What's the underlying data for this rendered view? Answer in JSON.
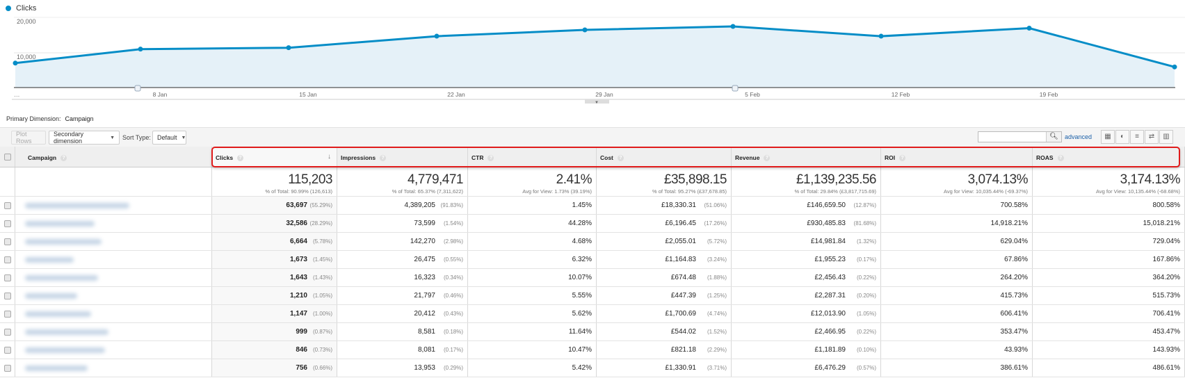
{
  "chart_data": {
    "type": "area",
    "series": [
      {
        "name": "Clicks",
        "values": [
          7000,
          11000,
          11400,
          14700,
          16500,
          17500,
          14700,
          17000,
          5900
        ]
      }
    ],
    "x_tick_labels": [
      "…",
      "8 Jan",
      "15 Jan",
      "22 Jan",
      "29 Jan",
      "5 Feb",
      "12 Feb",
      "19 Feb"
    ],
    "y_tick_labels": [
      "20,000",
      "10,000"
    ],
    "ylim": [
      0,
      20000
    ],
    "grid": true,
    "legend": "top-left",
    "color": "#058dc7",
    "fill_color": "#e5f1f8"
  },
  "primary_dimension": {
    "label": "Primary Dimension:",
    "value": "Campaign"
  },
  "toolbar": {
    "plot_rows": "Plot Rows",
    "secondary_dimension": "Secondary dimension",
    "sort_type_label": "Sort Type:",
    "sort_type_value": "Default",
    "search_value": "",
    "advanced": "advanced",
    "view_icons": [
      "data-table-icon",
      "pie-icon",
      "performance-icon",
      "comparison-icon",
      "pivot-icon"
    ]
  },
  "table": {
    "columns": [
      "Campaign",
      "Clicks",
      "Impressions",
      "CTR",
      "Cost",
      "Revenue",
      "ROI",
      "ROAS"
    ],
    "totals": [
      {
        "value": "115,203",
        "sub": "% of Total: 90.99% (126,613)"
      },
      {
        "value": "4,779,471",
        "sub": "% of Total: 65.37% (7,311,622)"
      },
      {
        "value": "2.41%",
        "sub": "Avg for View: 1.73% (39.19%)"
      },
      {
        "value": "£35,898.15",
        "sub": "% of Total: 95.27% (£37,678.85)"
      },
      {
        "value": "£1,139,235.56",
        "sub": "% of Total: 29.84% (£3,817,715.69)"
      },
      {
        "value": "3,074.13%",
        "sub": "Avg for View: 10,035.44% (-69.37%)"
      },
      {
        "value": "3,174.13%",
        "sub": "Avg for View: 10,135.44% (-68.68%)"
      }
    ],
    "rows": [
      {
        "clicks": "63,697",
        "clicks_pct": "(55.29%)",
        "impressions": "4,389,205",
        "impressions_pct": "(91.83%)",
        "ctr": "1.45%",
        "cost": "£18,330.31",
        "cost_pct": "(51.06%)",
        "revenue": "£146,659.50",
        "revenue_pct": "(12.87%)",
        "roi": "700.58%",
        "roas": "800.58%"
      },
      {
        "clicks": "32,586",
        "clicks_pct": "(28.29%)",
        "impressions": "73,599",
        "impressions_pct": "(1.54%)",
        "ctr": "44.28%",
        "cost": "£6,196.45",
        "cost_pct": "(17.26%)",
        "revenue": "£930,485.83",
        "revenue_pct": "(81.68%)",
        "roi": "14,918.21%",
        "roas": "15,018.21%"
      },
      {
        "clicks": "6,664",
        "clicks_pct": "(5.78%)",
        "impressions": "142,270",
        "impressions_pct": "(2.98%)",
        "ctr": "4.68%",
        "cost": "£2,055.01",
        "cost_pct": "(5.72%)",
        "revenue": "£14,981.84",
        "revenue_pct": "(1.32%)",
        "roi": "629.04%",
        "roas": "729.04%"
      },
      {
        "clicks": "1,673",
        "clicks_pct": "(1.45%)",
        "impressions": "26,475",
        "impressions_pct": "(0.55%)",
        "ctr": "6.32%",
        "cost": "£1,164.83",
        "cost_pct": "(3.24%)",
        "revenue": "£1,955.23",
        "revenue_pct": "(0.17%)",
        "roi": "67.86%",
        "roas": "167.86%"
      },
      {
        "clicks": "1,643",
        "clicks_pct": "(1.43%)",
        "impressions": "16,323",
        "impressions_pct": "(0.34%)",
        "ctr": "10.07%",
        "cost": "£674.48",
        "cost_pct": "(1.88%)",
        "revenue": "£2,456.43",
        "revenue_pct": "(0.22%)",
        "roi": "264.20%",
        "roas": "364.20%"
      },
      {
        "clicks": "1,210",
        "clicks_pct": "(1.05%)",
        "impressions": "21,797",
        "impressions_pct": "(0.46%)",
        "ctr": "5.55%",
        "cost": "£447.39",
        "cost_pct": "(1.25%)",
        "revenue": "£2,287.31",
        "revenue_pct": "(0.20%)",
        "roi": "415.73%",
        "roas": "515.73%"
      },
      {
        "clicks": "1,147",
        "clicks_pct": "(1.00%)",
        "impressions": "20,412",
        "impressions_pct": "(0.43%)",
        "ctr": "5.62%",
        "cost": "£1,700.69",
        "cost_pct": "(4.74%)",
        "revenue": "£12,013.90",
        "revenue_pct": "(1.05%)",
        "roi": "606.41%",
        "roas": "706.41%"
      },
      {
        "clicks": "999",
        "clicks_pct": "(0.87%)",
        "impressions": "8,581",
        "impressions_pct": "(0.18%)",
        "ctr": "11.64%",
        "cost": "£544.02",
        "cost_pct": "(1.52%)",
        "revenue": "£2,466.95",
        "revenue_pct": "(0.22%)",
        "roi": "353.47%",
        "roas": "453.47%"
      },
      {
        "clicks": "846",
        "clicks_pct": "(0.73%)",
        "impressions": "8,081",
        "impressions_pct": "(0.17%)",
        "ctr": "10.47%",
        "cost": "£821.18",
        "cost_pct": "(2.29%)",
        "revenue": "£1,181.89",
        "revenue_pct": "(0.10%)",
        "roi": "43.93%",
        "roas": "143.93%"
      },
      {
        "clicks": "756",
        "clicks_pct": "(0.66%)",
        "impressions": "13,953",
        "impressions_pct": "(0.29%)",
        "ctr": "5.42%",
        "cost": "£1,330.91",
        "cost_pct": "(3.71%)",
        "revenue": "£6,476.29",
        "revenue_pct": "(0.57%)",
        "roi": "386.61%",
        "roas": "486.61%"
      }
    ]
  }
}
